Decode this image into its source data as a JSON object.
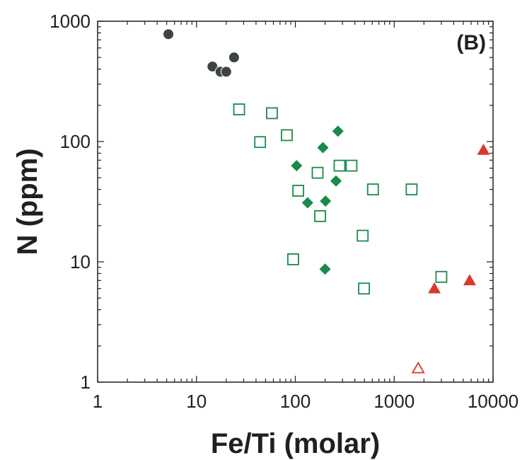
{
  "chart_data": {
    "type": "scatter",
    "panel_label": "(B)",
    "xlabel": "Fe/Ti (molar)",
    "ylabel": "N (ppm)",
    "x_scale": "log",
    "y_scale": "log",
    "xlim": [
      1,
      10000
    ],
    "ylim": [
      1,
      1000
    ],
    "x_ticks": [
      "1",
      "10",
      "100",
      "1000",
      "10000"
    ],
    "y_ticks": [
      "1",
      "10",
      "100",
      "1000"
    ],
    "grid": false,
    "series": [
      {
        "marker": "circle-filled",
        "color": "#3d4446",
        "points": [
          [
            5.2,
            780
          ],
          [
            14.5,
            420
          ],
          [
            17.5,
            380
          ],
          [
            20,
            380
          ],
          [
            24,
            500
          ]
        ]
      },
      {
        "marker": "square-open",
        "color": "#1a8a4a",
        "points": [
          [
            27,
            185
          ],
          [
            58,
            172
          ],
          [
            82,
            113
          ],
          [
            44,
            99
          ],
          [
            168,
            55
          ],
          [
            280,
            63
          ],
          [
            370,
            63
          ],
          [
            107,
            39
          ],
          [
            610,
            40
          ],
          [
            1500,
            40
          ],
          [
            178,
            24
          ],
          [
            480,
            16.5
          ],
          [
            95,
            10.5
          ],
          [
            495,
            6
          ],
          [
            3000,
            7.5
          ]
        ]
      },
      {
        "marker": "diamond-filled",
        "color": "#1a8a4a",
        "points": [
          [
            270,
            122
          ],
          [
            190,
            89
          ],
          [
            103,
            63
          ],
          [
            258,
            47
          ],
          [
            202,
            32
          ],
          [
            133,
            31
          ],
          [
            200,
            8.7
          ]
        ]
      },
      {
        "marker": "triangle-filled",
        "color": "#d9392b",
        "points": [
          [
            8000,
            85
          ],
          [
            5800,
            7
          ],
          [
            2550,
            6
          ]
        ]
      },
      {
        "marker": "triangle-open",
        "color": "#d9392b",
        "points": [
          [
            1750,
            1.3
          ]
        ]
      }
    ]
  }
}
